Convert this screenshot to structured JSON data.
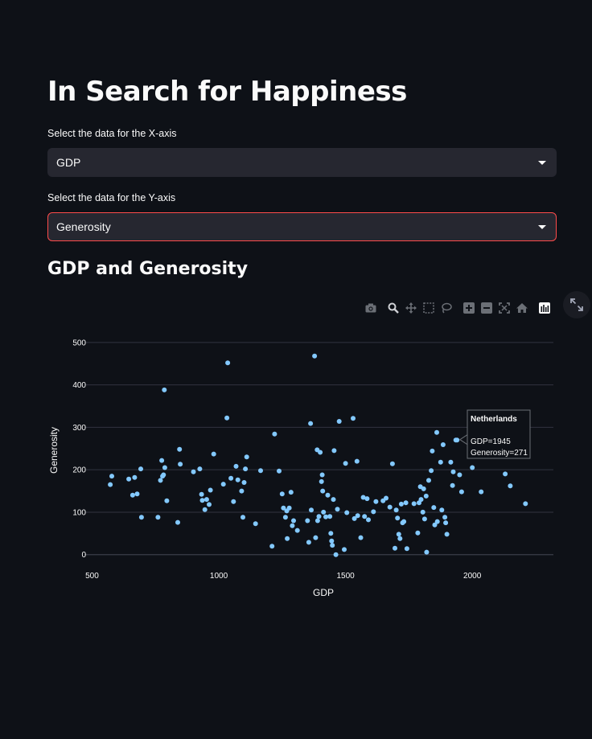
{
  "page": {
    "title": "In Search for Happiness",
    "x_select_label": "Select the data for the X-axis",
    "x_select_value": "GDP",
    "y_select_label": "Select the data for the Y-axis",
    "y_select_value": "Generosity",
    "chart_heading": "GDP and Generosity"
  },
  "modebar": {
    "icons": [
      "camera-icon",
      "zoom-icon",
      "pan-icon",
      "box-select-icon",
      "lasso-icon",
      "zoom-in-icon",
      "zoom-out-icon",
      "autoscale-icon",
      "reset-axes-icon",
      "plotly-logo-icon"
    ]
  },
  "colors": {
    "accent": "#ff4b4b",
    "marker": "#83c9ff",
    "background": "#0e1117",
    "select_bg": "#262730",
    "grid": "#31333f"
  },
  "chart_data": {
    "type": "scatter",
    "xlabel": "GDP",
    "ylabel": "Generosity",
    "xlim": [
      470,
      2320
    ],
    "ylim": [
      -10,
      530
    ],
    "xticks": [
      500,
      1000,
      1500,
      2000
    ],
    "yticks": [
      0,
      100,
      200,
      300,
      400,
      500
    ],
    "grid": true,
    "series": [
      {
        "points": [
          [
            572,
            165
          ],
          [
            578,
            185
          ],
          [
            645,
            178
          ],
          [
            660,
            140
          ],
          [
            668,
            182
          ],
          [
            678,
            143
          ],
          [
            692,
            202
          ],
          [
            695,
            88
          ],
          [
            760,
            88
          ],
          [
            770,
            175
          ],
          [
            775,
            222
          ],
          [
            778,
            185
          ],
          [
            782,
            188
          ],
          [
            785,
            388
          ],
          [
            787,
            205
          ],
          [
            795,
            127
          ],
          [
            838,
            76
          ],
          [
            845,
            248
          ],
          [
            848,
            213
          ],
          [
            900,
            195
          ],
          [
            925,
            202
          ],
          [
            932,
            142
          ],
          [
            935,
            128
          ],
          [
            945,
            106
          ],
          [
            952,
            130
          ],
          [
            962,
            118
          ],
          [
            967,
            152
          ],
          [
            980,
            237
          ],
          [
            1018,
            166
          ],
          [
            1032,
            322
          ],
          [
            1035,
            452
          ],
          [
            1048,
            180
          ],
          [
            1058,
            125
          ],
          [
            1068,
            208
          ],
          [
            1075,
            176
          ],
          [
            1090,
            150
          ],
          [
            1095,
            88
          ],
          [
            1100,
            170
          ],
          [
            1105,
            202
          ],
          [
            1110,
            230
          ],
          [
            1145,
            73
          ],
          [
            1165,
            198
          ],
          [
            1210,
            20
          ],
          [
            1220,
            284
          ],
          [
            1238,
            197
          ],
          [
            1250,
            143
          ],
          [
            1255,
            110
          ],
          [
            1263,
            88
          ],
          [
            1268,
            103
          ],
          [
            1270,
            38
          ],
          [
            1278,
            110
          ],
          [
            1285,
            147
          ],
          [
            1290,
            68
          ],
          [
            1295,
            80
          ],
          [
            1310,
            57
          ],
          [
            1350,
            80
          ],
          [
            1355,
            29
          ],
          [
            1362,
            309
          ],
          [
            1365,
            105
          ],
          [
            1378,
            468
          ],
          [
            1382,
            40
          ],
          [
            1388,
            247
          ],
          [
            1390,
            80
          ],
          [
            1395,
            90
          ],
          [
            1400,
            241
          ],
          [
            1405,
            172
          ],
          [
            1408,
            188
          ],
          [
            1410,
            150
          ],
          [
            1413,
            100
          ],
          [
            1422,
            89
          ],
          [
            1430,
            140
          ],
          [
            1438,
            90
          ],
          [
            1442,
            50
          ],
          [
            1445,
            32
          ],
          [
            1448,
            22
          ],
          [
            1452,
            130
          ],
          [
            1455,
            245
          ],
          [
            1462,
            0
          ],
          [
            1468,
            107
          ],
          [
            1475,
            314
          ],
          [
            1495,
            12
          ],
          [
            1500,
            215
          ],
          [
            1505,
            99
          ],
          [
            1530,
            321
          ],
          [
            1535,
            85
          ],
          [
            1545,
            220
          ],
          [
            1548,
            92
          ],
          [
            1560,
            40
          ],
          [
            1570,
            135
          ],
          [
            1575,
            90
          ],
          [
            1585,
            132
          ],
          [
            1590,
            82
          ],
          [
            1610,
            101
          ],
          [
            1620,
            125
          ],
          [
            1648,
            127
          ],
          [
            1660,
            133
          ],
          [
            1675,
            112
          ],
          [
            1685,
            214
          ],
          [
            1695,
            15
          ],
          [
            1700,
            105
          ],
          [
            1705,
            86
          ],
          [
            1710,
            48
          ],
          [
            1715,
            38
          ],
          [
            1720,
            119
          ],
          [
            1725,
            75
          ],
          [
            1730,
            78
          ],
          [
            1738,
            122
          ],
          [
            1742,
            14
          ],
          [
            1770,
            120
          ],
          [
            1785,
            51
          ],
          [
            1790,
            122
          ],
          [
            1795,
            160
          ],
          [
            1798,
            130
          ],
          [
            1805,
            100
          ],
          [
            1808,
            155
          ],
          [
            1812,
            84
          ],
          [
            1818,
            138
          ],
          [
            1820,
            6
          ],
          [
            1828,
            175
          ],
          [
            1838,
            198
          ],
          [
            1842,
            244
          ],
          [
            1848,
            111
          ],
          [
            1852,
            70
          ],
          [
            1860,
            288
          ],
          [
            1862,
            78
          ],
          [
            1875,
            218
          ],
          [
            1880,
            105
          ],
          [
            1885,
            259
          ],
          [
            1892,
            88
          ],
          [
            1895,
            75
          ],
          [
            1900,
            48
          ],
          [
            1915,
            218
          ],
          [
            1922,
            163
          ],
          [
            1925,
            195
          ],
          [
            1935,
            270
          ],
          [
            1940,
            270
          ],
          [
            1950,
            188
          ],
          [
            1958,
            148
          ],
          [
            2000,
            205
          ],
          [
            2035,
            148
          ],
          [
            2130,
            190
          ],
          [
            2150,
            162
          ],
          [
            2210,
            120
          ]
        ]
      }
    ],
    "hover": {
      "name": "Netherlands",
      "x_text": "GDP=1945",
      "y_text": "Generosity=271",
      "x": 1945,
      "y": 271
    }
  }
}
